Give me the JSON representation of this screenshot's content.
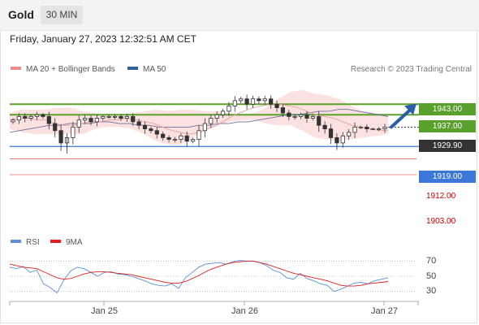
{
  "header": {
    "instrument": "Gold",
    "timeframe": "30 MIN"
  },
  "timestamp": "Friday, January 27, 2023 12:32:51 AM CET",
  "legend": {
    "bollinger": {
      "label": "MA 20 + Bollinger Bands",
      "color": "#f08a84"
    },
    "ma50": {
      "label": "MA 50",
      "color": "#2f5f9e"
    },
    "credit": "Research © 2023 Trading Central"
  },
  "rsi_legend": {
    "rsi": {
      "label": "RSI",
      "color": "#5b8fd8"
    },
    "ma9": {
      "label": "9MA",
      "color": "#e02020"
    }
  },
  "chart_data": [
    {
      "type": "candlestick",
      "title": "",
      "ylim": [
        1897,
        1956
      ],
      "x_ticks": [
        "Jan 25",
        "Jan 26",
        "Jan 27"
      ],
      "current_price": {
        "label": "1929.90",
        "value": 1929.9,
        "color": "#333333"
      },
      "resistance_levels": [
        {
          "label": "1943.00",
          "value": 1943.0,
          "color": "#5aa02c"
        },
        {
          "label": "1937.00",
          "value": 1937.0,
          "color": "#5aa02c"
        }
      ],
      "support_levels": [
        {
          "label": "1919.00",
          "value": 1919.0,
          "color": "#3b78d8"
        },
        {
          "label": "1912.00",
          "value": 1912.0,
          "color": "#e06666"
        },
        {
          "label": "1903.00",
          "value": 1903.0,
          "color": "#e06666"
        }
      ],
      "forecast": {
        "from": 1930,
        "to": 1942,
        "direction": "up",
        "color": "#2a5fa8"
      },
      "close_path": [
        1934,
        1936,
        1935,
        1936,
        1937,
        1936,
        1932,
        1928,
        1921,
        1924,
        1930,
        1934,
        1935,
        1933,
        1935,
        1936,
        1936,
        1936,
        1935,
        1936,
        1933,
        1931,
        1929,
        1928,
        1926,
        1924,
        1923,
        1923,
        1925,
        1922,
        1923,
        1928,
        1932,
        1935,
        1937,
        1939,
        1942,
        1945,
        1946,
        1943,
        1946,
        1945,
        1946,
        1943,
        1941,
        1938,
        1936,
        1936,
        1937,
        1935,
        1936,
        1931,
        1929,
        1924,
        1921,
        1925,
        1927,
        1930,
        1930,
        1929,
        1929,
        1929,
        1930
      ],
      "ma20_path": [
        1934,
        1935,
        1935,
        1934,
        1934,
        1932,
        1931,
        1931,
        1932,
        1933,
        1933,
        1934,
        1934,
        1935,
        1934,
        1933,
        1932,
        1930,
        1928,
        1927,
        1926,
        1927,
        1929,
        1931,
        1934,
        1937,
        1939,
        1941,
        1942,
        1943,
        1943,
        1942,
        1941,
        1939,
        1937,
        1936,
        1935,
        1933,
        1931,
        1930,
        1929,
        1928,
        1928
      ],
      "ma50_path": [
        1927,
        1928,
        1929,
        1930,
        1931,
        1931,
        1932,
        1932,
        1932,
        1933,
        1933,
        1932,
        1932,
        1931,
        1931,
        1930,
        1930,
        1930,
        1930,
        1931,
        1931,
        1932,
        1932,
        1933,
        1933,
        1934,
        1935,
        1936,
        1937,
        1937,
        1938,
        1939,
        1939,
        1940,
        1940,
        1939,
        1938,
        1937,
        1936
      ],
      "bollinger_upper": [
        1938,
        1940,
        1940,
        1940,
        1941,
        1941,
        1939,
        1938,
        1937,
        1937,
        1938,
        1939,
        1940,
        1939,
        1940,
        1940,
        1939,
        1939,
        1938,
        1937,
        1938,
        1941,
        1946,
        1950,
        1951,
        1949,
        1948,
        1946,
        1942,
        1939,
        1938,
        1937
      ],
      "bollinger_lower": [
        1929,
        1927,
        1926,
        1926,
        1926,
        1926,
        1926,
        1929,
        1930,
        1930,
        1929,
        1926,
        1922,
        1920,
        1920,
        1924,
        1928,
        1931,
        1933,
        1934,
        1934,
        1932,
        1931,
        1931,
        1928,
        1924,
        1923,
        1922,
        1923,
        1924,
        1925,
        1926
      ]
    },
    {
      "type": "line",
      "title": "RSI",
      "ylim": [
        20,
        80
      ],
      "y_ticks": [
        "70",
        "50",
        "30"
      ],
      "series": [
        {
          "name": "RSI",
          "color": "#5b8fd8",
          "values": [
            62,
            60,
            63,
            55,
            58,
            40,
            35,
            28,
            45,
            57,
            62,
            60,
            55,
            50,
            55,
            56,
            53,
            52,
            50,
            47,
            44,
            40,
            38,
            37,
            40,
            34,
            48,
            55,
            62,
            66,
            67,
            68,
            66,
            69,
            71,
            70,
            70,
            68,
            64,
            58,
            55,
            48,
            46,
            54,
            47,
            44,
            40,
            38,
            30,
            33,
            37,
            41,
            42,
            40,
            44,
            46,
            48
          ]
        },
        {
          "name": "9MA",
          "color": "#e02020",
          "values": [
            66,
            64,
            62,
            61,
            60,
            56,
            52,
            48,
            46,
            47,
            50,
            53,
            55,
            56,
            56,
            55,
            54,
            53,
            52,
            50,
            48,
            46,
            44,
            42,
            41,
            41,
            43,
            47,
            51,
            56,
            60,
            63,
            66,
            68,
            69,
            70,
            70,
            68,
            66,
            63,
            60,
            57,
            54,
            52,
            50,
            48,
            46,
            44,
            41,
            38,
            37,
            37,
            38,
            40,
            41,
            42,
            43
          ]
        }
      ]
    }
  ]
}
